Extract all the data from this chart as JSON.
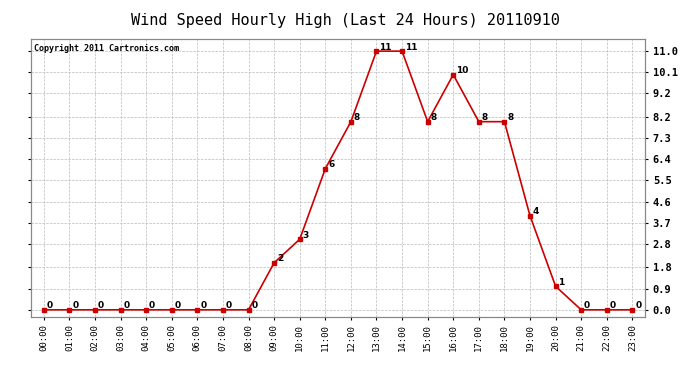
{
  "title": "Wind Speed Hourly High (Last 24 Hours) 20110910",
  "copyright": "Copyright 2011 Cartronics.com",
  "hours": [
    "00:00",
    "01:00",
    "02:00",
    "03:00",
    "04:00",
    "05:00",
    "06:00",
    "07:00",
    "08:00",
    "09:00",
    "10:00",
    "11:00",
    "12:00",
    "13:00",
    "14:00",
    "15:00",
    "16:00",
    "17:00",
    "18:00",
    "19:00",
    "20:00",
    "21:00",
    "22:00",
    "23:00"
  ],
  "values": [
    0,
    0,
    0,
    0,
    0,
    0,
    0,
    0,
    0,
    2,
    3,
    6,
    8,
    11,
    11,
    8,
    10,
    8,
    8,
    4,
    1,
    0,
    0,
    0
  ],
  "line_color": "#cc0000",
  "marker_color": "#cc0000",
  "bg_color": "#ffffff",
  "grid_color": "#bbbbbb",
  "title_fontsize": 11,
  "yticks": [
    0.0,
    0.9,
    1.8,
    2.8,
    3.7,
    4.6,
    5.5,
    6.4,
    7.3,
    8.2,
    9.2,
    10.1,
    11.0
  ],
  "ylim": [
    -0.3,
    11.5
  ]
}
